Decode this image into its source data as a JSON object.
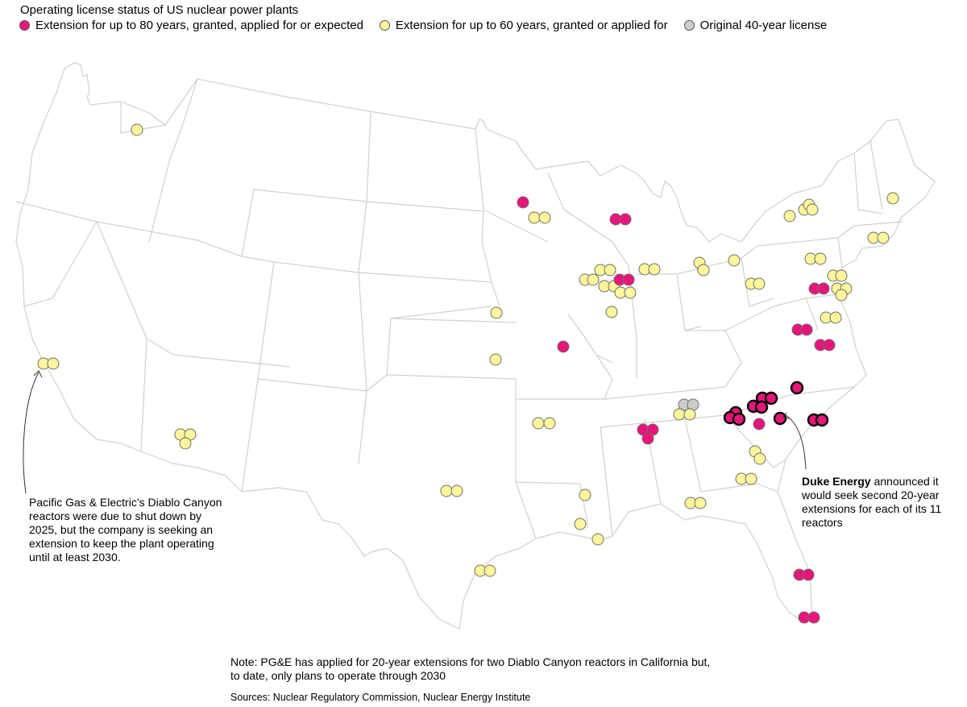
{
  "title": "Operating license status of US nuclear power plants",
  "legend": [
    {
      "label": "Extension for up to 80 years, granted, applied for or expected",
      "color": "#e8157a"
    },
    {
      "label": "Extension for up to 60 years, granted or applied for",
      "color": "#fff59a"
    },
    {
      "label": "Original 40-year license",
      "color": "#cccccc"
    }
  ],
  "colors": {
    "ext80": "#e8157a",
    "ext60": "#fff59a",
    "orig40": "#cccccc",
    "state_border": "#d0d0d0",
    "dot_stroke": "#6e6e6e",
    "duke_stroke": "#000000"
  },
  "annotations": {
    "pge": "Pacific Gas & Electric’s Diablo Canyon reactors were due to shut down by 2025, but the company is seeking an extension to keep the plant operating until at least 2030.",
    "duke_bold": "Duke Energy",
    "duke_rest": " announced it would seek second 20-year extensions for each of its 11 reactors"
  },
  "note": "Note: PG&E has applied for 20-year extensions for two Diablo Canyon reactors in California but, to date, only plans to operate through 2030",
  "sources": "Sources: Nuclear Regulatory Commission, Nuclear Energy Institute"
}
